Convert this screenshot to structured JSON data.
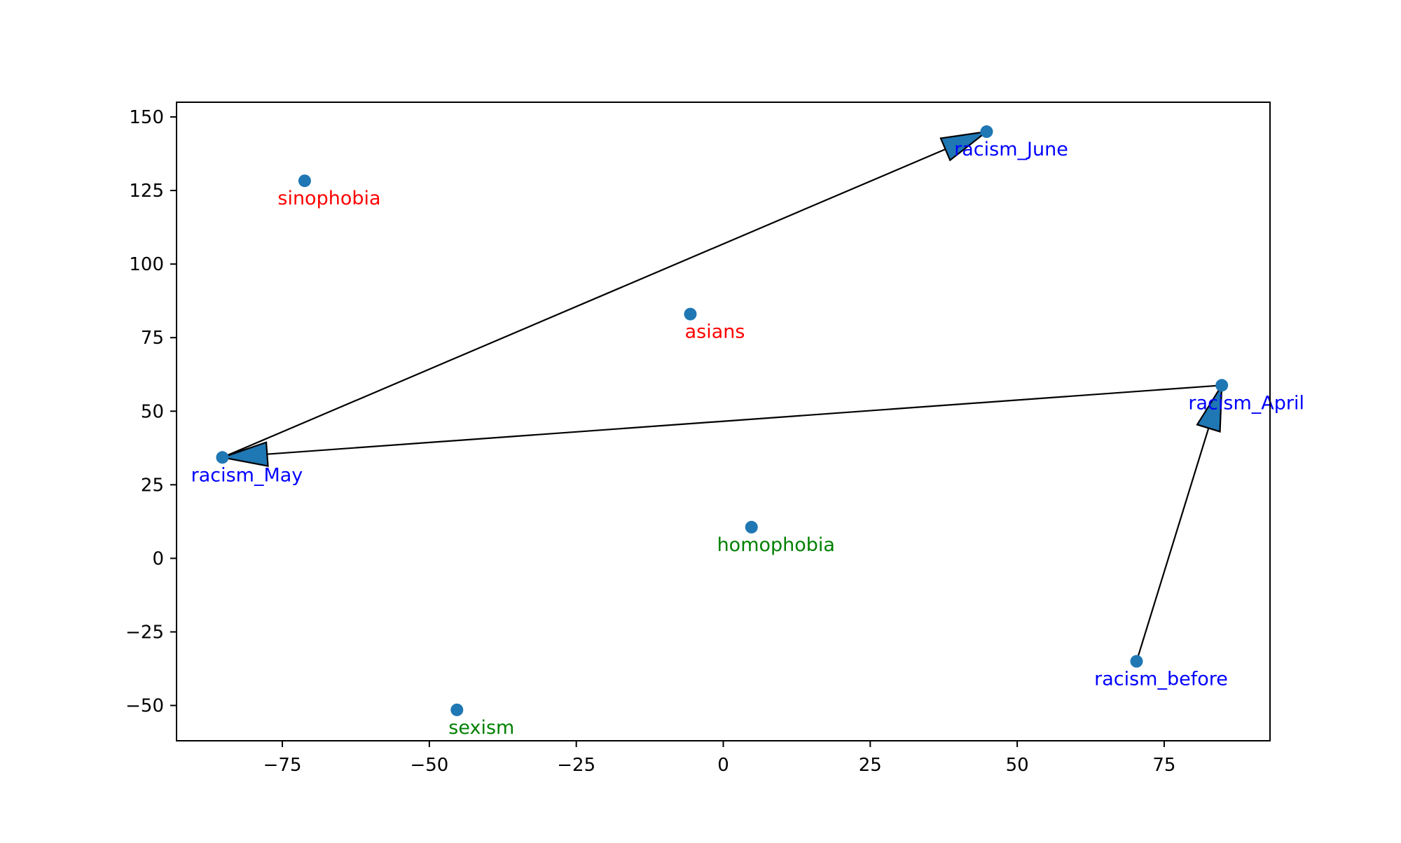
{
  "chart_data": {
    "type": "scatter",
    "title": "",
    "xlabel": "",
    "ylabel": "",
    "xlim": [
      -93,
      93
    ],
    "ylim": [
      -62,
      155
    ],
    "grid": false,
    "x_ticks": [
      -75,
      -50,
      -25,
      0,
      25,
      50,
      75
    ],
    "y_ticks": [
      -50,
      -25,
      0,
      25,
      50,
      75,
      100,
      125,
      150
    ],
    "point_color": "#1f77b4",
    "points": [
      {
        "label": "sinophobia",
        "x": -71.2,
        "y": 128.3,
        "label_color": "#ff0000"
      },
      {
        "label": "racism_June",
        "x": 44.8,
        "y": 145.0,
        "label_color": "#0000ff"
      },
      {
        "label": "asians",
        "x": -5.6,
        "y": 83.0,
        "label_color": "#ff0000"
      },
      {
        "label": "racism_April",
        "x": 84.8,
        "y": 58.8,
        "label_color": "#0000ff"
      },
      {
        "label": "racism_May",
        "x": -85.2,
        "y": 34.3,
        "label_color": "#0000ff"
      },
      {
        "label": "homophobia",
        "x": 4.8,
        "y": 10.6,
        "label_color": "#008000"
      },
      {
        "label": "racism_before",
        "x": 70.3,
        "y": -35.0,
        "label_color": "#0000ff"
      },
      {
        "label": "sexism",
        "x": -45.3,
        "y": -51.5,
        "label_color": "#008000"
      }
    ],
    "arrows": [
      {
        "from": "racism_before",
        "to": "racism_April"
      },
      {
        "from": "racism_April",
        "to": "racism_May"
      },
      {
        "from": "racism_May",
        "to": "racism_June"
      }
    ],
    "arrow_fill": "#1f77b4",
    "arrow_stroke": "#000000"
  }
}
